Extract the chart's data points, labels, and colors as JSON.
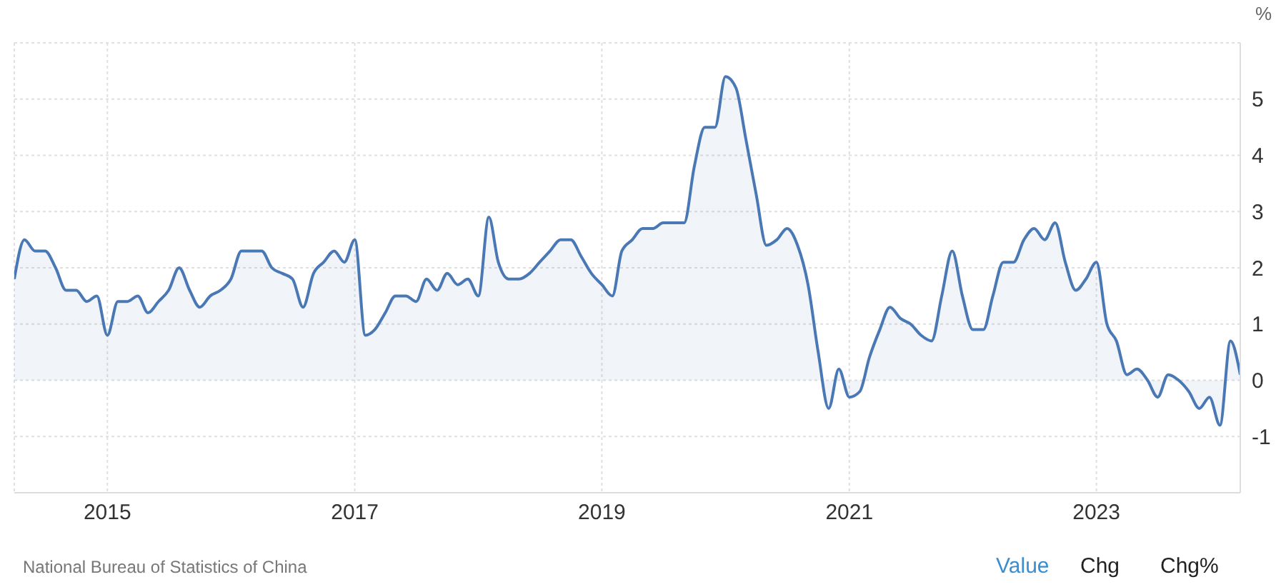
{
  "chart_data": {
    "type": "area",
    "ylabel": "%",
    "x": [
      "2014-04",
      "2014-05",
      "2014-06",
      "2014-07",
      "2014-08",
      "2014-09",
      "2014-10",
      "2014-11",
      "2014-12",
      "2015-01",
      "2015-02",
      "2015-03",
      "2015-04",
      "2015-05",
      "2015-06",
      "2015-07",
      "2015-08",
      "2015-09",
      "2015-10",
      "2015-11",
      "2015-12",
      "2016-01",
      "2016-02",
      "2016-03",
      "2016-04",
      "2016-05",
      "2016-06",
      "2016-07",
      "2016-08",
      "2016-09",
      "2016-10",
      "2016-11",
      "2016-12",
      "2017-01",
      "2017-02",
      "2017-03",
      "2017-04",
      "2017-05",
      "2017-06",
      "2017-07",
      "2017-08",
      "2017-09",
      "2017-10",
      "2017-11",
      "2017-12",
      "2018-01",
      "2018-02",
      "2018-03",
      "2018-04",
      "2018-05",
      "2018-06",
      "2018-07",
      "2018-08",
      "2018-09",
      "2018-10",
      "2018-11",
      "2018-12",
      "2019-01",
      "2019-02",
      "2019-03",
      "2019-04",
      "2019-05",
      "2019-06",
      "2019-07",
      "2019-08",
      "2019-09",
      "2019-10",
      "2019-11",
      "2019-12",
      "2020-01",
      "2020-02",
      "2020-03",
      "2020-04",
      "2020-05",
      "2020-06",
      "2020-07",
      "2020-08",
      "2020-09",
      "2020-10",
      "2020-11",
      "2020-12",
      "2021-01",
      "2021-02",
      "2021-03",
      "2021-04",
      "2021-05",
      "2021-06",
      "2021-07",
      "2021-08",
      "2021-09",
      "2021-10",
      "2021-11",
      "2021-12",
      "2022-01",
      "2022-02",
      "2022-03",
      "2022-04",
      "2022-05",
      "2022-06",
      "2022-07",
      "2022-08",
      "2022-09",
      "2022-10",
      "2022-11",
      "2022-12",
      "2023-01",
      "2023-02",
      "2023-03",
      "2023-04",
      "2023-05",
      "2023-06",
      "2023-07",
      "2023-08",
      "2023-09",
      "2023-10",
      "2023-11",
      "2023-12",
      "2024-01",
      "2024-02",
      "2024-03"
    ],
    "series": [
      {
        "color": "#4a78b4",
        "values": [
          1.8,
          2.5,
          2.3,
          2.3,
          2.0,
          1.6,
          1.6,
          1.4,
          1.5,
          0.8,
          1.4,
          1.4,
          1.5,
          1.2,
          1.4,
          1.6,
          2.0,
          1.6,
          1.3,
          1.5,
          1.6,
          1.8,
          2.3,
          2.3,
          2.3,
          2.0,
          1.9,
          1.8,
          1.3,
          1.9,
          2.1,
          2.3,
          2.1,
          2.5,
          0.8,
          0.9,
          1.2,
          1.5,
          1.5,
          1.4,
          1.8,
          1.6,
          1.9,
          1.7,
          1.8,
          1.5,
          2.9,
          2.1,
          1.8,
          1.8,
          1.9,
          2.1,
          2.3,
          2.5,
          2.5,
          2.2,
          1.9,
          1.7,
          1.5,
          2.3,
          2.5,
          2.7,
          2.7,
          2.8,
          2.8,
          2.8,
          3.8,
          4.5,
          4.5,
          5.4,
          5.2,
          4.3,
          3.3,
          2.4,
          2.5,
          2.7,
          2.4,
          1.7,
          0.5,
          -0.5,
          0.2,
          -0.3,
          -0.2,
          0.4,
          0.9,
          1.3,
          1.1,
          1.0,
          0.8,
          0.7,
          1.5,
          2.3,
          1.5,
          0.9,
          0.9,
          1.5,
          2.1,
          2.1,
          2.5,
          2.7,
          2.5,
          2.8,
          2.1,
          1.6,
          1.8,
          2.1,
          1.0,
          0.7,
          0.1,
          0.2,
          0.0,
          -0.3,
          0.1,
          0.0,
          -0.2,
          -0.5,
          -0.3,
          -0.8,
          0.7,
          0.1
        ]
      }
    ],
    "xlim": [
      "2014-04",
      "2024-03"
    ],
    "xticks": [
      "2015",
      "2017",
      "2019",
      "2021",
      "2023"
    ],
    "ylim": [
      -2,
      6
    ],
    "yticks": [
      -1,
      0,
      1,
      2,
      3,
      4,
      5
    ],
    "grid": true,
    "legend": false,
    "annotations": [
      "National Bureau of Statistics of China",
      "Value",
      "Chg",
      "Chg%"
    ]
  }
}
